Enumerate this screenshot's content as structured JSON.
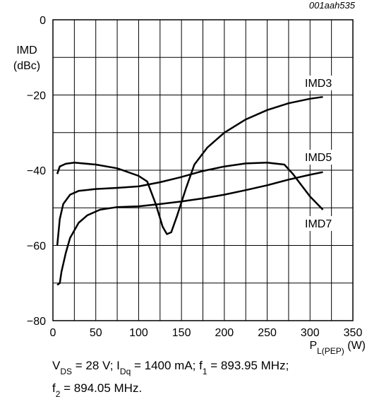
{
  "chart_data": {
    "type": "line",
    "code": "001aah535",
    "ylabel": [
      "IMD",
      "(dBc)"
    ],
    "xlabel": [
      {
        "text": "P"
      },
      {
        "text": "L(PEP)",
        "sub": true
      },
      {
        "text": " (W)"
      }
    ],
    "caption": [
      [
        {
          "text": "V"
        },
        {
          "text": "DS",
          "sub": true
        },
        {
          "text": " = 28 V; I"
        },
        {
          "text": "Dq",
          "sub": true
        },
        {
          "text": " = 1400 mA; f"
        },
        {
          "text": "1",
          "sub": true
        },
        {
          "text": " = 893.95 MHz;"
        }
      ],
      [
        {
          "text": "f"
        },
        {
          "text": "2",
          "sub": true
        },
        {
          "text": " = 894.05 MHz."
        }
      ]
    ],
    "xlim": [
      0,
      350
    ],
    "xticks": [
      0,
      50,
      100,
      150,
      200,
      250,
      300,
      350
    ],
    "ylim": [
      -80,
      0
    ],
    "yticks": [
      {
        "value": -80,
        "label": "−80"
      },
      {
        "value": -60,
        "label": "−60"
      },
      {
        "value": -40,
        "label": "−40"
      },
      {
        "value": -20,
        "label": "−20"
      },
      0
    ],
    "grid": true,
    "series": [
      {
        "name": "IMD3",
        "color": "#000000",
        "x": [
          5,
          8,
          15,
          25,
          50,
          75,
          100,
          110,
          120,
          128,
          133,
          138,
          145,
          155,
          165,
          180,
          200,
          225,
          250,
          275,
          300,
          315
        ],
        "values": [
          -41,
          -39,
          -38.3,
          -38,
          -38.5,
          -39.5,
          -41.5,
          -43,
          -49,
          -55,
          -57,
          -56.5,
          -52,
          -45,
          -38.5,
          -34,
          -30,
          -26.5,
          -24,
          -22.2,
          -21,
          -20.5
        ]
      },
      {
        "name": "IMD5",
        "color": "#000000",
        "x": [
          5,
          8,
          12,
          20,
          30,
          50,
          75,
          100,
          125,
          150,
          175,
          200,
          225,
          250,
          270,
          280,
          290,
          300,
          315
        ],
        "values": [
          -60,
          -53,
          -49,
          -46.5,
          -45.5,
          -45,
          -44.7,
          -44.3,
          -43.2,
          -41.8,
          -40.2,
          -39,
          -38.2,
          -38,
          -38.5,
          -41,
          -44,
          -47,
          -50.5
        ]
      },
      {
        "name": "IMD7",
        "color": "#000000",
        "x": [
          5,
          8,
          10,
          15,
          20,
          30,
          40,
          55,
          75,
          100,
          125,
          150,
          175,
          200,
          225,
          250,
          275,
          300,
          315
        ],
        "values": [
          -70.5,
          -70,
          -67,
          -62,
          -58,
          -54,
          -52,
          -50.5,
          -49.8,
          -49.6,
          -49,
          -48.3,
          -47.5,
          -46.5,
          -45.3,
          -44,
          -42.5,
          -41.2,
          -40.5
        ]
      }
    ]
  }
}
